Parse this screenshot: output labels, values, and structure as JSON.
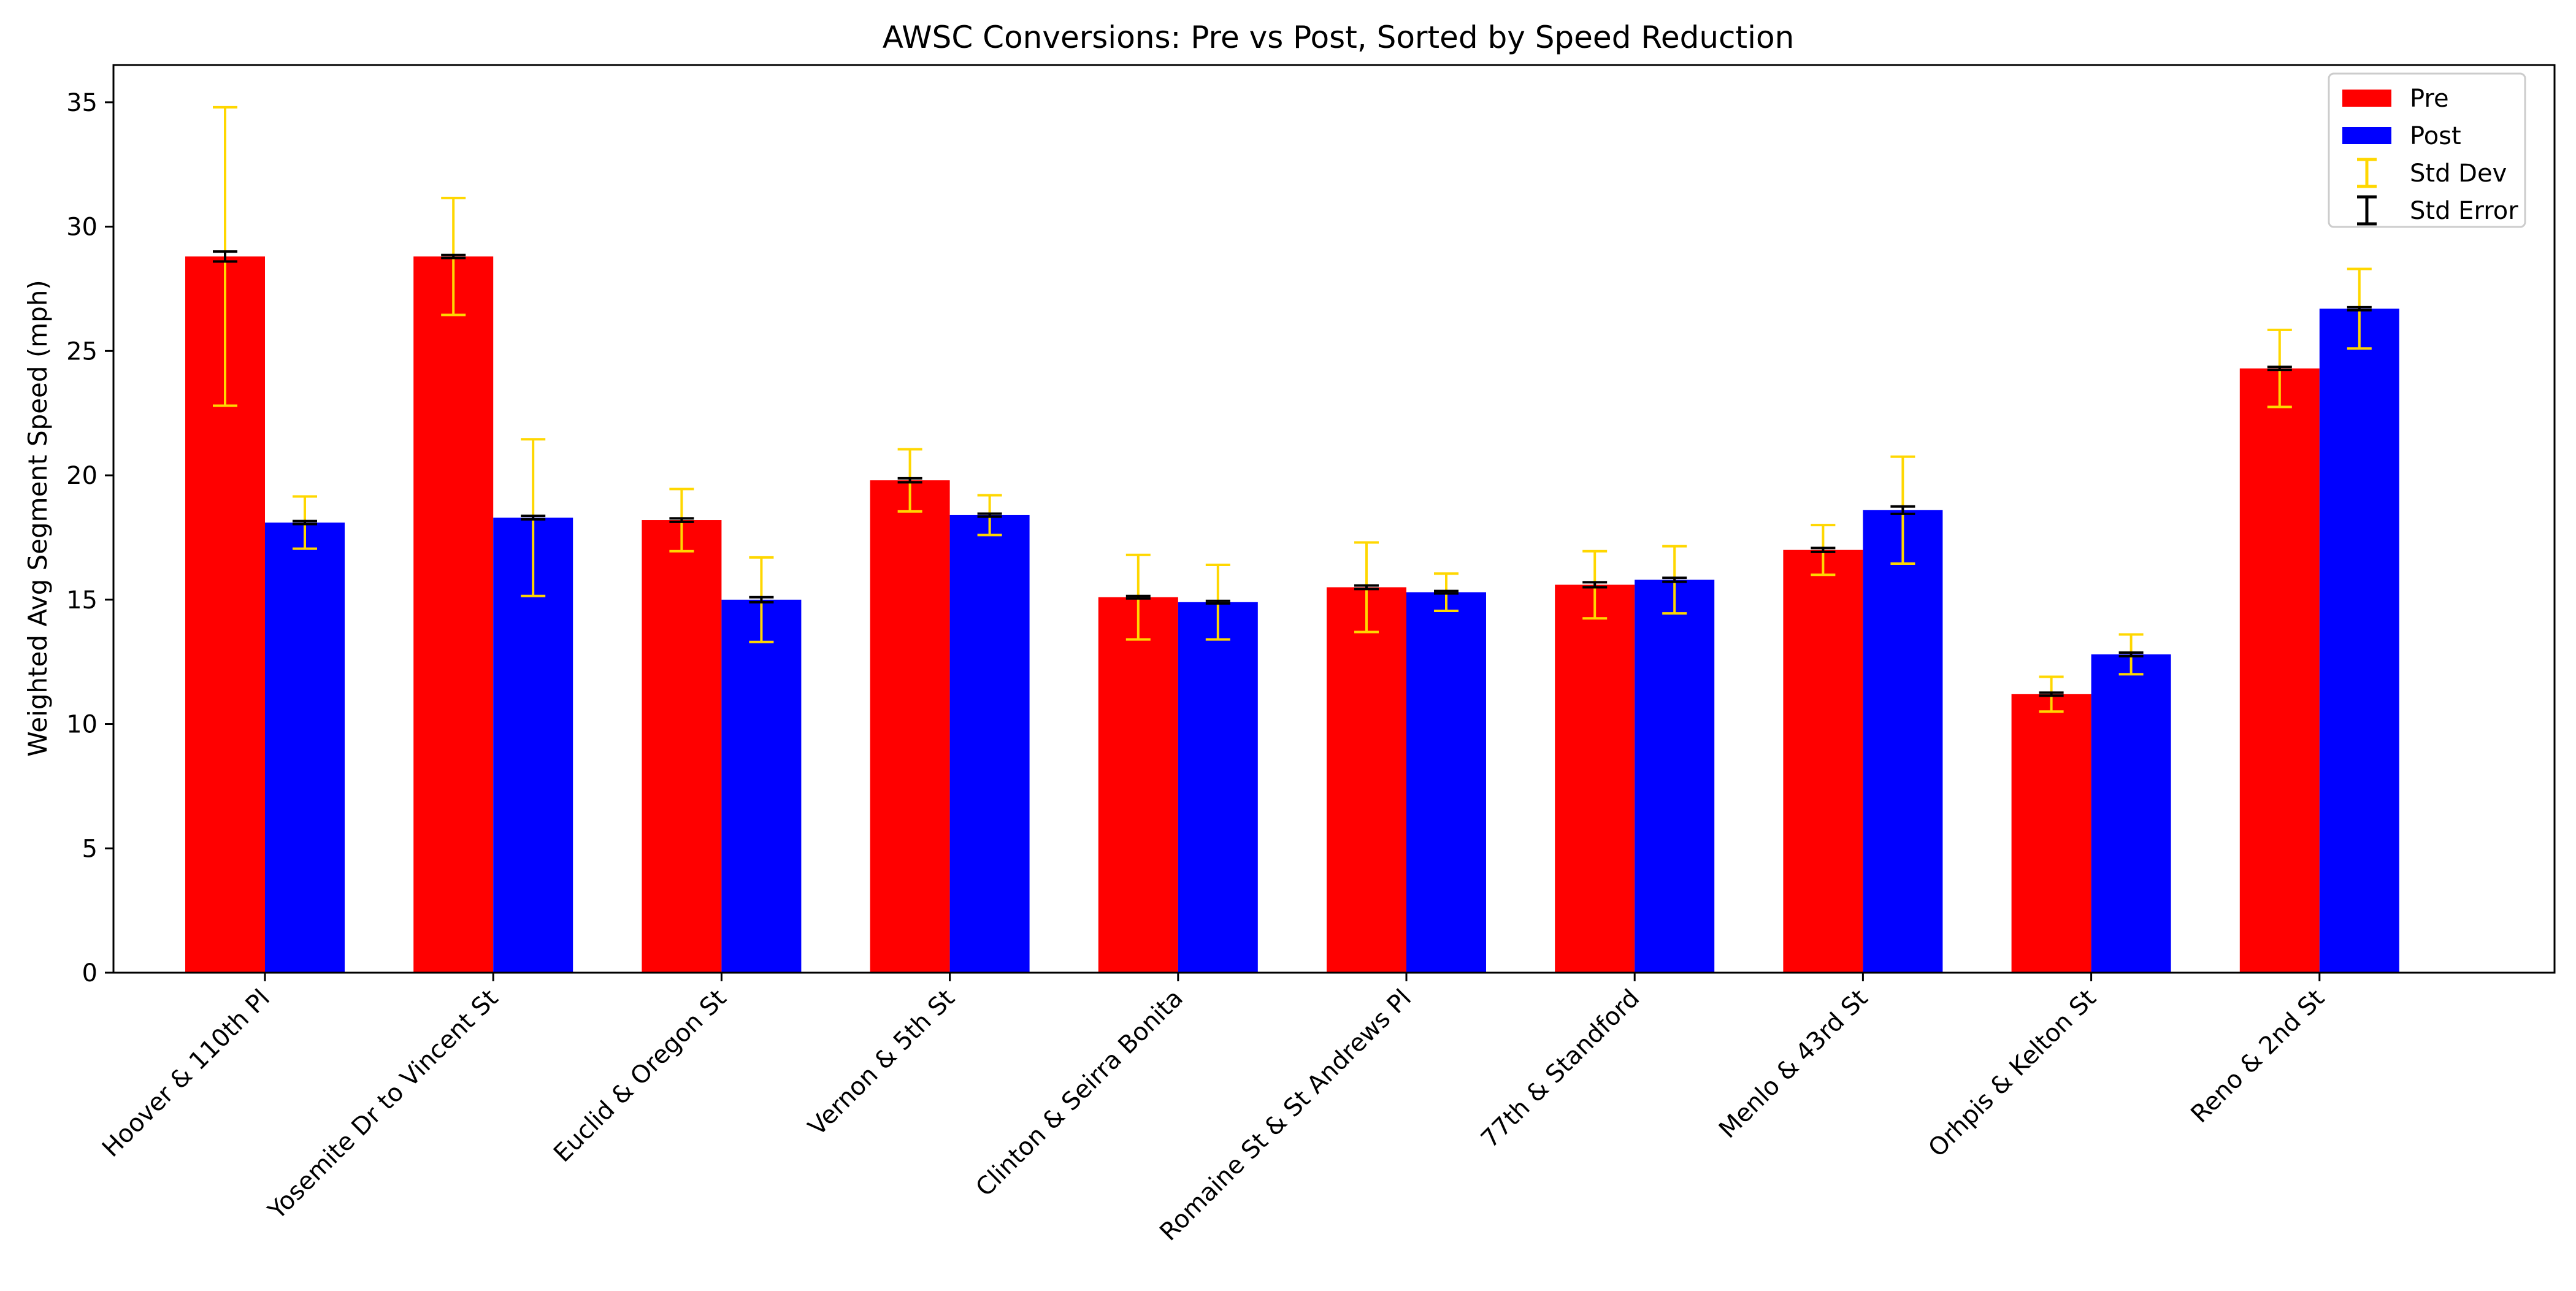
{
  "chart_data": {
    "type": "bar",
    "title": "AWSC Conversions: Pre vs Post, Sorted by Speed Reduction",
    "xlabel": "",
    "ylabel": "Weighted Avg Segment Speed (mph)",
    "ylim": [
      0,
      36.5
    ],
    "yticks": [
      "0",
      "5",
      "10",
      "15",
      "20",
      "25",
      "30",
      "35"
    ],
    "grid": false,
    "legend_position": "top-right",
    "categories": [
      "Hoover & 110th Pl",
      "Yosemite Dr to Vincent St",
      "Euclid & Oregon St",
      "Vernon & 5th St",
      "Clinton & Seirra Bonita",
      "Romaine St & St Andrews Pl",
      "77th & Standford",
      "Menlo & 43rd St",
      "Orhpis & Kelton St",
      "Reno & 2nd St"
    ],
    "series": [
      {
        "name": "Pre",
        "color": "#ff0000",
        "values": [
          28.8,
          28.8,
          18.2,
          19.8,
          15.1,
          15.5,
          15.6,
          17.0,
          11.2,
          24.3
        ],
        "std_dev": [
          6.0,
          2.35,
          1.25,
          1.25,
          1.7,
          1.8,
          1.35,
          1.0,
          0.7,
          1.55
        ],
        "std_error": [
          0.2,
          0.06,
          0.07,
          0.08,
          0.05,
          0.07,
          0.1,
          0.08,
          0.06,
          0.06
        ]
      },
      {
        "name": "Post",
        "color": "#0000ff",
        "values": [
          18.1,
          18.3,
          15.0,
          18.4,
          14.9,
          15.3,
          15.8,
          18.6,
          12.8,
          26.7
        ],
        "std_dev": [
          1.05,
          3.15,
          1.7,
          0.8,
          1.5,
          0.75,
          1.35,
          2.15,
          0.8,
          1.6
        ],
        "std_error": [
          0.06,
          0.07,
          0.1,
          0.06,
          0.05,
          0.05,
          0.08,
          0.15,
          0.07,
          0.06
        ]
      }
    ],
    "error_bars": [
      {
        "name": "Std Dev",
        "color": "#ffd700"
      },
      {
        "name": "Std Error",
        "color": "#000000"
      }
    ]
  }
}
